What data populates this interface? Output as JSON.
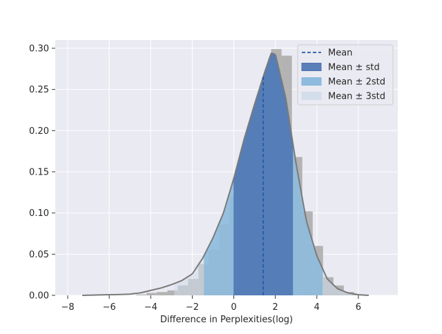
{
  "chart_data": {
    "type": "histogram",
    "title": "",
    "xlabel": "Difference in Perplexities(log)",
    "ylabel": "",
    "xlim": [
      -8.6,
      7.9
    ],
    "ylim": [
      0,
      0.31
    ],
    "xticks": [
      -8,
      -6,
      -4,
      -2,
      0,
      2,
      4,
      6
    ],
    "xtick_labels": [
      "−8",
      "−6",
      "−4",
      "−2",
      "0",
      "2",
      "4",
      "6"
    ],
    "yticks": [
      0,
      0.05,
      0.1,
      0.15,
      0.2,
      0.25,
      0.3
    ],
    "ytick_labels": [
      "0.00",
      "0.05",
      "0.10",
      "0.15",
      "0.20",
      "0.25",
      "0.30"
    ],
    "grid": true,
    "legend_position": "top-right",
    "mean": 1.42,
    "std": 1.43,
    "bin_width": 0.5,
    "bin_starts": [
      -7.2,
      -6.7,
      -6.2,
      -5.7,
      -5.2,
      -4.7,
      -4.2,
      -3.7,
      -3.2,
      -2.7,
      -2.2,
      -1.7,
      -1.2,
      -0.7,
      -0.2,
      0.3,
      0.8,
      1.3,
      1.8,
      2.3,
      2.8,
      3.3,
      3.8,
      4.3,
      4.8,
      5.3,
      5.8,
      6.3,
      6.8
    ],
    "bin_density": [
      0.0,
      0.0,
      0.0,
      0.0,
      0.0,
      0.001,
      0.003,
      0.004,
      0.006,
      0.012,
      0.02,
      0.038,
      0.055,
      0.086,
      0.12,
      0.166,
      0.211,
      0.255,
      0.299,
      0.291,
      0.168,
      0.102,
      0.06,
      0.022,
      0.012,
      0.004,
      0.001,
      0.0,
      0.0
    ],
    "kde": {
      "x": [
        -7.3,
        -6.5,
        -6.0,
        -5.5,
        -5.0,
        -4.5,
        -4.0,
        -3.5,
        -3.0,
        -2.5,
        -2.0,
        -1.5,
        -1.0,
        -0.5,
        0.0,
        0.5,
        1.0,
        1.5,
        1.8,
        2.0,
        2.5,
        3.0,
        3.5,
        4.0,
        4.5,
        5.0,
        5.5,
        6.0,
        6.5
      ],
      "y": [
        0.0,
        0.0005,
        0.0008,
        0.001,
        0.0015,
        0.003,
        0.006,
        0.009,
        0.013,
        0.018,
        0.026,
        0.045,
        0.07,
        0.1,
        0.142,
        0.19,
        0.232,
        0.272,
        0.294,
        0.293,
        0.24,
        0.16,
        0.09,
        0.048,
        0.02,
        0.008,
        0.003,
        0.0008,
        0.0
      ]
    },
    "series": [
      {
        "name": "Mean",
        "style": "dashed-line",
        "color": "#1f5aa6"
      },
      {
        "name": "Mean ± std",
        "style": "fill",
        "color": "#4a72b0"
      },
      {
        "name": "Mean ± 2std",
        "style": "fill",
        "color": "#84b6db"
      },
      {
        "name": "Mean ± 3std",
        "style": "fill",
        "color": "#d2dde9"
      }
    ],
    "colors": {
      "background": "#eaeaf2",
      "grid": "#ffffff",
      "histogram": "#a9a9a9",
      "kde": "#7a7a7a"
    }
  }
}
